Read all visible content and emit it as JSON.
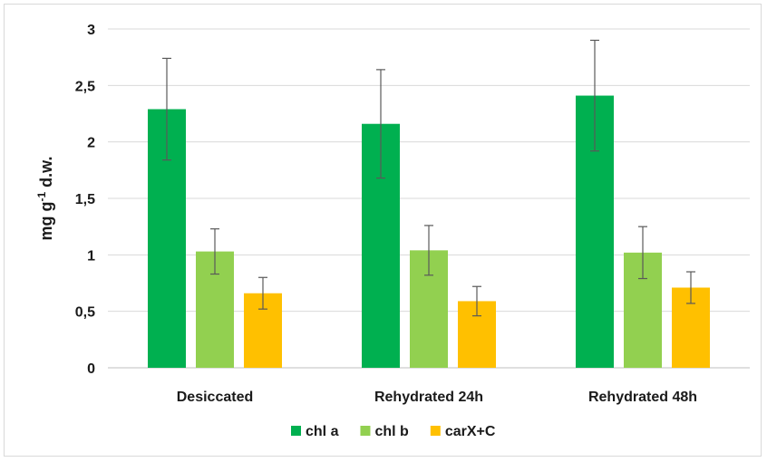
{
  "chart_data": {
    "type": "bar",
    "title": "",
    "xlabel": "",
    "ylabel": {
      "base": "mg g",
      "sup": "-1",
      "tail": " d.w."
    },
    "ylim": [
      0,
      3
    ],
    "yticks": [
      "0",
      "0,5",
      "1",
      "1,5",
      "2",
      "2,5",
      "3"
    ],
    "ytick_values": [
      0,
      0.5,
      1,
      1.5,
      2,
      2.5,
      3
    ],
    "grid": true,
    "legend_position": "bottom",
    "categories": [
      "Desiccated",
      "Rehydrated 24h",
      "Rehydrated 48h"
    ],
    "series": [
      {
        "name": "chl a",
        "color": "#00b050",
        "values": [
          2.29,
          2.16,
          2.41
        ],
        "errors": [
          0.45,
          0.48,
          0.49
        ]
      },
      {
        "name": "chl b",
        "color": "#92d050",
        "values": [
          1.03,
          1.04,
          1.02
        ],
        "errors": [
          0.2,
          0.22,
          0.23
        ]
      },
      {
        "name": "carX+C",
        "color": "#ffc000",
        "values": [
          0.66,
          0.59,
          0.71
        ],
        "errors": [
          0.14,
          0.13,
          0.14
        ]
      }
    ]
  }
}
